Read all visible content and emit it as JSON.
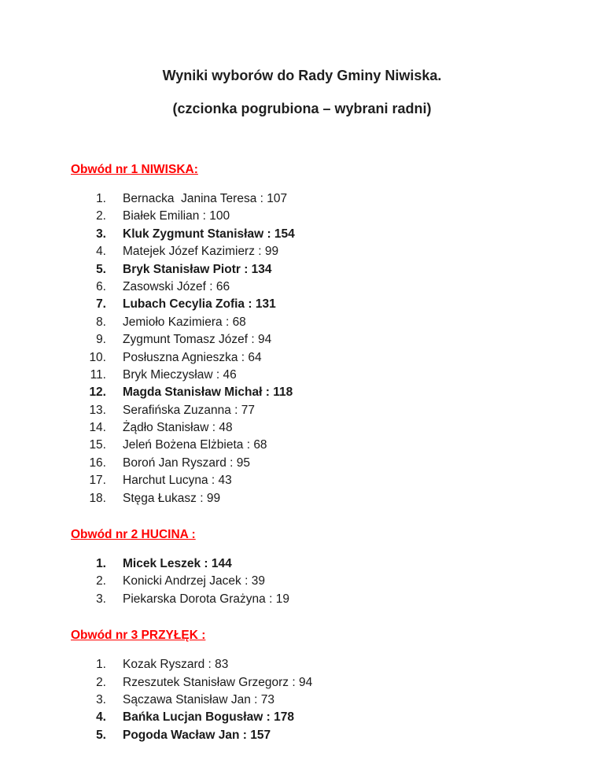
{
  "doc": {
    "title": "Wyniki wyborów do Rady Gminy Niwiska.",
    "subtitle": "(czcionka pogrubiona – wybrani radni)",
    "separator": " : "
  },
  "colors": {
    "page_background": "#ffffff",
    "body_text": "#1a1a1a",
    "section_header_red": "#ff0000"
  },
  "sections": [
    {
      "header": "Obwód nr 1 NIWISKA:",
      "items": [
        {
          "num": "1.",
          "name": "Bernacka  Janina Teresa",
          "votes": 107,
          "elected": false
        },
        {
          "num": "2.",
          "name": "Białek Emilian",
          "votes": 100,
          "elected": false
        },
        {
          "num": "3.",
          "name": "Kluk Zygmunt Stanisław",
          "votes": 154,
          "elected": true
        },
        {
          "num": "4.",
          "name": "Matejek Józef Kazimierz",
          "votes": 99,
          "elected": false
        },
        {
          "num": "5.",
          "name": "Bryk Stanisław Piotr",
          "votes": 134,
          "elected": true
        },
        {
          "num": "6.",
          "name": "Zasowski Józef",
          "votes": 66,
          "elected": false
        },
        {
          "num": "7.",
          "name": "Lubach Cecylia Zofia",
          "votes": 131,
          "elected": true
        },
        {
          "num": "8.",
          "name": "Jemioło Kazimiera",
          "votes": 68,
          "elected": false
        },
        {
          "num": "9.",
          "name": "Zygmunt Tomasz Józef",
          "votes": 94,
          "elected": false
        },
        {
          "num": "10.",
          "name": "Posłuszna Agnieszka",
          "votes": 64,
          "elected": false
        },
        {
          "num": "11.",
          "name": "Bryk Mieczysław",
          "votes": 46,
          "elected": false
        },
        {
          "num": "12.",
          "name": "Magda Stanisław Michał",
          "votes": 118,
          "elected": true
        },
        {
          "num": "13.",
          "name": "Serafińska Zuzanna",
          "votes": 77,
          "elected": false
        },
        {
          "num": "14.",
          "name": "Żądło Stanisław",
          "votes": 48,
          "elected": false
        },
        {
          "num": "15.",
          "name": "Jeleń Bożena Elżbieta",
          "votes": 68,
          "elected": false
        },
        {
          "num": "16.",
          "name": "Boroń Jan Ryszard",
          "votes": 95,
          "elected": false
        },
        {
          "num": "17.",
          "name": "Harchut Lucyna",
          "votes": 43,
          "elected": false
        },
        {
          "num": "18.",
          "name": "Stęga Łukasz",
          "votes": 99,
          "elected": false
        }
      ]
    },
    {
      "header": "Obwód nr 2 HUCINA :",
      "items": [
        {
          "num": "1.",
          "name": "Micek Leszek",
          "votes": 144,
          "elected": true
        },
        {
          "num": "2.",
          "name": "Konicki Andrzej Jacek",
          "votes": 39,
          "elected": false
        },
        {
          "num": "3.",
          "name": "Piekarska Dorota Grażyna",
          "votes": 19,
          "elected": false
        }
      ]
    },
    {
      "header": "Obwód nr 3 PRZYŁĘK :",
      "items": [
        {
          "num": "1.",
          "name": "Kozak Ryszard",
          "votes": 83,
          "elected": false
        },
        {
          "num": "2.",
          "name": "Rzeszutek Stanisław Grzegorz",
          "votes": 94,
          "elected": false
        },
        {
          "num": "3.",
          "name": "Sączawa Stanisław Jan",
          "votes": 73,
          "elected": false
        },
        {
          "num": "4.",
          "name": "Bańka Lucjan Bogusław",
          "votes": 178,
          "elected": true
        },
        {
          "num": "5.",
          "name": "Pogoda Wacław Jan",
          "votes": 157,
          "elected": true
        }
      ]
    }
  ]
}
